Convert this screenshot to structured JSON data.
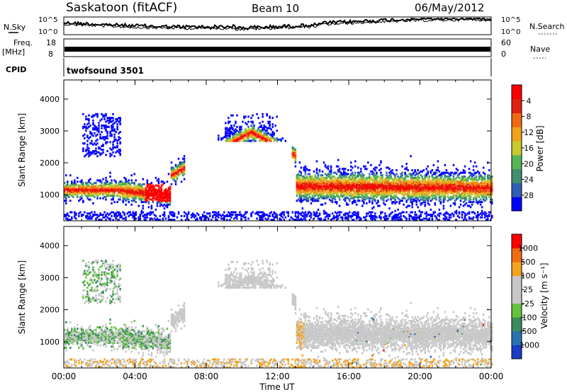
{
  "header": {
    "station": "Saskatoon (fitACF)",
    "beam": "Beam 10",
    "date": "06/May/2012"
  },
  "param_panels": {
    "nsky_label": "N.Sky",
    "nsearch_label": "N.Search",
    "nsky_ticks": [
      "10^5",
      "10^0"
    ],
    "nsearch_ticks": [
      "10^5",
      "10^0"
    ],
    "freq_label": "Freq.",
    "freq_unit": "[MHz]",
    "freq_ticks": [
      "18",
      "8"
    ],
    "nave_label": "Nave",
    "nave_ticks": [
      "60",
      "0"
    ],
    "cpid_label": "CPID",
    "cpid_value": "twofsound 3501"
  },
  "chart_data": [
    {
      "type": "heatmap",
      "panel": "power",
      "xlabel": "",
      "ylabel": "Slant Range [km]",
      "x_ticks": [
        "00:00",
        "04:00",
        "08:00",
        "12:00",
        "16:00",
        "20:00",
        "00:00"
      ],
      "xlim_hours": [
        0,
        24
      ],
      "y_ticks": [
        1000,
        2000,
        3000,
        4000
      ],
      "ylim": [
        180,
        4600
      ],
      "colorbar": {
        "label": "Power [dB]",
        "ticks": [
          "4",
          "8",
          "12",
          "16",
          "20",
          "24",
          "28"
        ],
        "colors": [
          "#0000ff",
          "#2f5fb5",
          "#3f8f6f",
          "#55b655",
          "#c9c92e",
          "#f2a21a",
          "#ef6a12",
          "#e02010",
          "#ff0000"
        ]
      }
    },
    {
      "type": "heatmap",
      "panel": "velocity",
      "xlabel": "Time UT",
      "ylabel": "Slant Range [km]",
      "x_ticks": [
        "00:00",
        "04:00",
        "08:00",
        "12:00",
        "16:00",
        "20:00",
        "00:00"
      ],
      "xlim_hours": [
        0,
        24
      ],
      "y_ticks": [
        1000,
        2000,
        3000,
        4000
      ],
      "ylim": [
        180,
        4600
      ],
      "colorbar": {
        "label": "Velocity [m s⁻¹]",
        "ticks": [
          "1000",
          "500",
          "100",
          "25",
          "-25",
          "-100",
          "-500",
          "-1000"
        ],
        "colors": [
          "#1c3cc8",
          "#2a73b3",
          "#3c8c5c",
          "#61c23e",
          "#c8c8c8",
          "#c8c8c8",
          "#f4a321",
          "#ef6d12",
          "#ff0000"
        ]
      }
    }
  ]
}
